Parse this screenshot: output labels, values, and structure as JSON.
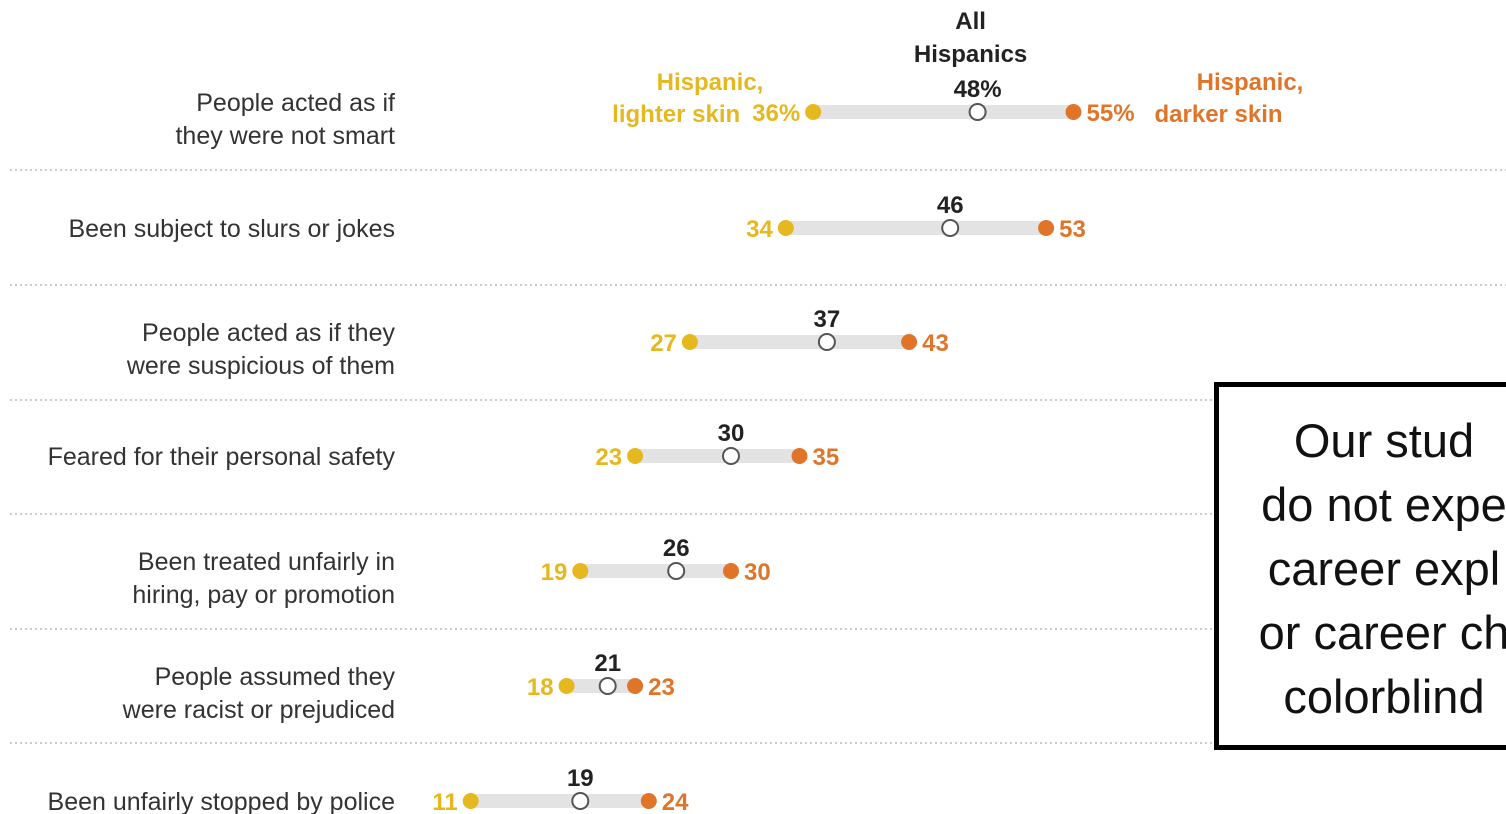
{
  "chart_data": {
    "type": "dot",
    "title": "",
    "xlabel": "",
    "ylabel": "",
    "xlim": [
      0,
      100
    ],
    "grid": false,
    "unit_suffix_first_row": "%",
    "categories": [
      [
        "People acted as if",
        "they were not smart"
      ],
      [
        "Been subject to slurs or jokes"
      ],
      [
        "People acted as if they",
        "were suspicious of them"
      ],
      [
        "Feared for their personal safety"
      ],
      [
        "Been treated unfairly in",
        "hiring, pay or promotion"
      ],
      [
        "People assumed they",
        "were racist or prejudiced"
      ],
      [
        "Been unfairly stopped by police"
      ]
    ],
    "series": [
      {
        "name": "Hispanic, lighter skin",
        "label_lines": [
          "Hispanic,",
          "lighter skin"
        ],
        "color": "#e6b820",
        "values": [
          36,
          34,
          27,
          23,
          19,
          18,
          11
        ]
      },
      {
        "name": "All Hispanics",
        "label_lines": [
          "All",
          "Hispanics"
        ],
        "color": "#555555",
        "values": [
          48,
          46,
          37,
          30,
          26,
          21,
          19
        ]
      },
      {
        "name": "Hispanic, darker skin",
        "label_lines": [
          "Hispanic,",
          "darker skin"
        ],
        "color": "#e0752a",
        "values": [
          55,
          53,
          43,
          35,
          30,
          23,
          24
        ]
      }
    ]
  },
  "callout": {
    "lines": [
      "Our stud",
      "do not expe",
      "career expl",
      "or career ch",
      "colorblind"
    ]
  },
  "colors": {
    "light": "#e6b820",
    "dark": "#e0752a",
    "all": "#555555",
    "bar": "#e3e3e3",
    "divider": "#bbbbbb"
  }
}
